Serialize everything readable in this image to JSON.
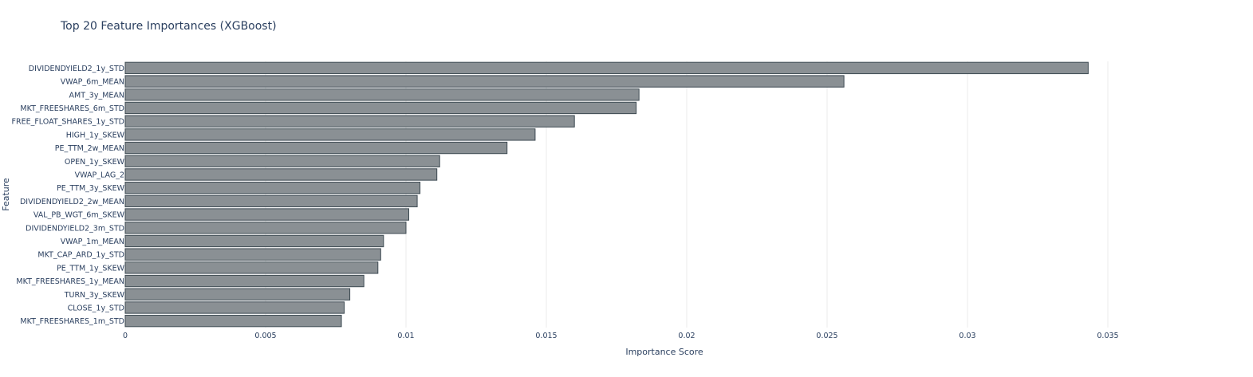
{
  "chart_data": {
    "type": "bar",
    "orientation": "horizontal",
    "title": "Top 20 Feature Importances (XGBoost)",
    "xlabel": "Importance Score",
    "ylabel": "Feature",
    "xlim": [
      0,
      0.0375
    ],
    "xticks": [
      0,
      0.005,
      0.01,
      0.015,
      0.02,
      0.025,
      0.03,
      0.035
    ],
    "xtick_labels": [
      "0",
      "0.005",
      "0.01",
      "0.015",
      "0.02",
      "0.025",
      "0.03",
      "0.035"
    ],
    "grid": true,
    "colors": {
      "bar_fill": "#8a9094",
      "bar_stroke": "#3d4a52",
      "text": "#2a3f5f",
      "grid": "#ebebeb"
    },
    "categories": [
      "DIVIDENDYIELD2_1y_STD",
      "VWAP_6m_MEAN",
      "AMT_3y_MEAN",
      "MKT_FREESHARES_6m_STD",
      "FREE_FLOAT_SHARES_1y_STD",
      "HIGH_1y_SKEW",
      "PE_TTM_2w_MEAN",
      "OPEN_1y_SKEW",
      "VWAP_LAG_2",
      "PE_TTM_3y_SKEW",
      "DIVIDENDYIELD2_2w_MEAN",
      "VAL_PB_WGT_6m_SKEW",
      "DIVIDENDYIELD2_3m_STD",
      "VWAP_1m_MEAN",
      "MKT_CAP_ARD_1y_STD",
      "PE_TTM_1y_SKEW",
      "MKT_FREESHARES_1y_MEAN",
      "TURN_3y_SKEW",
      "CLOSE_1y_STD",
      "MKT_FREESHARES_1m_STD"
    ],
    "values": [
      0.0343,
      0.0256,
      0.0183,
      0.0182,
      0.016,
      0.0146,
      0.0136,
      0.0112,
      0.0111,
      0.0105,
      0.0104,
      0.0101,
      0.01,
      0.0092,
      0.0091,
      0.009,
      0.0085,
      0.008,
      0.0078,
      0.0077
    ]
  }
}
